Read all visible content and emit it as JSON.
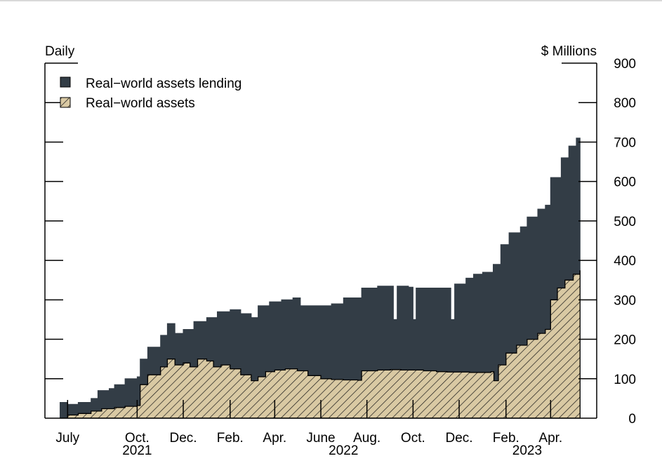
{
  "chart_data": {
    "type": "area",
    "frequency_label": "Daily",
    "unit_label": "$ Millions",
    "ylim": [
      0,
      900
    ],
    "y_ticks": [
      0,
      100,
      200,
      300,
      400,
      500,
      600,
      700,
      800,
      900
    ],
    "y_axis_side": "right",
    "stacked": true,
    "grid": false,
    "legend_position": "top-left",
    "x_tick_labels": [
      {
        "label": "July",
        "date": "2021-07-01"
      },
      {
        "label": "Oct.",
        "date": "2021-10-01"
      },
      {
        "label": "Dec.",
        "date": "2021-12-01"
      },
      {
        "label": "Feb.",
        "date": "2022-02-01"
      },
      {
        "label": "Apr.",
        "date": "2022-04-01"
      },
      {
        "label": "June",
        "date": "2022-06-01"
      },
      {
        "label": "Aug.",
        "date": "2022-08-01"
      },
      {
        "label": "Oct.",
        "date": "2022-10-01"
      },
      {
        "label": "Dec.",
        "date": "2022-12-01"
      },
      {
        "label": "Feb.",
        "date": "2023-02-01"
      },
      {
        "label": "Apr.",
        "date": "2023-04-01"
      }
    ],
    "year_labels": [
      {
        "label": "2021",
        "date": "2021-10-01"
      },
      {
        "label": "2022",
        "date": "2022-07-01"
      },
      {
        "label": "2023",
        "date": "2023-03-01"
      }
    ],
    "x_range": [
      "2021-06-01",
      "2023-06-01"
    ],
    "series": [
      {
        "name": "Real−world assets",
        "color": "#d9c9a3",
        "pattern": "hatched",
        "points": [
          [
            "2021-06-21",
            0
          ],
          [
            "2021-07-01",
            8
          ],
          [
            "2021-07-15",
            12
          ],
          [
            "2021-08-01",
            18
          ],
          [
            "2021-08-15",
            24
          ],
          [
            "2021-09-01",
            27
          ],
          [
            "2021-09-15",
            30
          ],
          [
            "2021-10-01",
            32
          ],
          [
            "2021-10-05",
            85
          ],
          [
            "2021-10-15",
            110
          ],
          [
            "2021-11-01",
            130
          ],
          [
            "2021-11-10",
            150
          ],
          [
            "2021-11-20",
            135
          ],
          [
            "2021-12-01",
            140
          ],
          [
            "2021-12-10",
            130
          ],
          [
            "2021-12-20",
            150
          ],
          [
            "2022-01-01",
            145
          ],
          [
            "2022-01-10",
            130
          ],
          [
            "2022-01-20",
            135
          ],
          [
            "2022-02-01",
            125
          ],
          [
            "2022-02-15",
            110
          ],
          [
            "2022-03-01",
            95
          ],
          [
            "2022-03-10",
            105
          ],
          [
            "2022-03-20",
            118
          ],
          [
            "2022-04-01",
            122
          ],
          [
            "2022-04-15",
            125
          ],
          [
            "2022-05-01",
            120
          ],
          [
            "2022-05-15",
            108
          ],
          [
            "2022-06-01",
            100
          ],
          [
            "2022-06-15",
            98
          ],
          [
            "2022-07-01",
            97
          ],
          [
            "2022-07-20",
            96
          ],
          [
            "2022-07-25",
            120
          ],
          [
            "2022-08-15",
            122
          ],
          [
            "2022-09-01",
            123
          ],
          [
            "2022-09-15",
            122
          ],
          [
            "2022-10-01",
            122
          ],
          [
            "2022-10-15",
            120
          ],
          [
            "2022-11-01",
            118
          ],
          [
            "2022-11-15",
            117
          ],
          [
            "2022-12-01",
            117
          ],
          [
            "2022-12-15",
            116
          ],
          [
            "2023-01-01",
            116
          ],
          [
            "2023-01-12",
            118
          ],
          [
            "2023-01-16",
            95
          ],
          [
            "2023-01-22",
            135
          ],
          [
            "2023-02-01",
            165
          ],
          [
            "2023-02-15",
            185
          ],
          [
            "2023-03-01",
            200
          ],
          [
            "2023-03-15",
            215
          ],
          [
            "2023-03-25",
            225
          ],
          [
            "2023-04-01",
            300
          ],
          [
            "2023-04-10",
            330
          ],
          [
            "2023-04-20",
            350
          ],
          [
            "2023-05-01",
            365
          ],
          [
            "2023-05-10",
            375
          ]
        ]
      },
      {
        "name": "Real−world assets lending",
        "color": "#333d46",
        "pattern": "solid",
        "points": [
          [
            "2021-06-21",
            40
          ],
          [
            "2021-07-01",
            35
          ],
          [
            "2021-07-15",
            40
          ],
          [
            "2021-08-01",
            50
          ],
          [
            "2021-08-10",
            70
          ],
          [
            "2021-08-25",
            75
          ],
          [
            "2021-09-01",
            85
          ],
          [
            "2021-09-15",
            100
          ],
          [
            "2021-10-01",
            105
          ],
          [
            "2021-10-05",
            150
          ],
          [
            "2021-10-15",
            180
          ],
          [
            "2021-11-01",
            210
          ],
          [
            "2021-11-10",
            240
          ],
          [
            "2021-11-20",
            215
          ],
          [
            "2021-12-01",
            225
          ],
          [
            "2021-12-15",
            245
          ],
          [
            "2022-01-01",
            255
          ],
          [
            "2022-01-15",
            270
          ],
          [
            "2022-02-01",
            275
          ],
          [
            "2022-02-15",
            265
          ],
          [
            "2022-03-01",
            255
          ],
          [
            "2022-03-10",
            285
          ],
          [
            "2022-03-25",
            295
          ],
          [
            "2022-04-10",
            300
          ],
          [
            "2022-04-25",
            305
          ],
          [
            "2022-05-05",
            285
          ],
          [
            "2022-06-01",
            285
          ],
          [
            "2022-06-15",
            290
          ],
          [
            "2022-07-01",
            305
          ],
          [
            "2022-07-20",
            305
          ],
          [
            "2022-07-25",
            330
          ],
          [
            "2022-08-15",
            335
          ],
          [
            "2022-09-01",
            335
          ],
          [
            "2022-09-05",
            250
          ],
          [
            "2022-09-10",
            335
          ],
          [
            "2022-09-25",
            332
          ],
          [
            "2022-10-01",
            250
          ],
          [
            "2022-10-05",
            330
          ],
          [
            "2022-10-20",
            330
          ],
          [
            "2022-11-01",
            330
          ],
          [
            "2022-11-15",
            330
          ],
          [
            "2022-11-20",
            250
          ],
          [
            "2022-11-25",
            340
          ],
          [
            "2022-12-10",
            355
          ],
          [
            "2022-12-20",
            365
          ],
          [
            "2023-01-01",
            370
          ],
          [
            "2023-01-15",
            390
          ],
          [
            "2023-01-25",
            440
          ],
          [
            "2023-02-05",
            470
          ],
          [
            "2023-02-20",
            485
          ],
          [
            "2023-03-01",
            510
          ],
          [
            "2023-03-15",
            530
          ],
          [
            "2023-03-25",
            540
          ],
          [
            "2023-04-01",
            610
          ],
          [
            "2023-04-15",
            660
          ],
          [
            "2023-04-25",
            690
          ],
          [
            "2023-05-05",
            710
          ],
          [
            "2023-05-10",
            710
          ]
        ]
      }
    ]
  }
}
